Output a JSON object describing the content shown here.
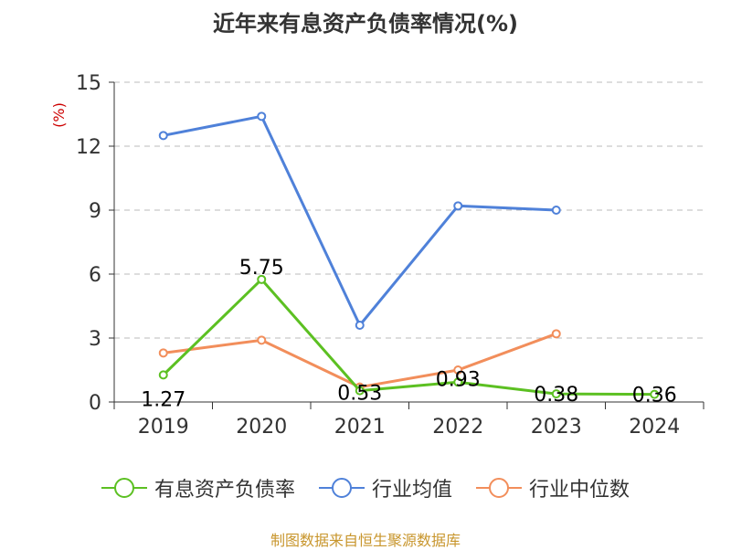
{
  "chart_data": {
    "type": "line",
    "title": "近年来有息资产负债率情况(%)",
    "ylabel": "(%)",
    "ylim": [
      0,
      15
    ],
    "yticks": [
      "0",
      "3",
      "6",
      "9",
      "12",
      "15"
    ],
    "categories": [
      "2019",
      "2020",
      "2021",
      "2022",
      "2023",
      "2024"
    ],
    "grid": true,
    "legend_position": "bottom",
    "series": [
      {
        "name": "有息资产负债率",
        "color": "#5cc022",
        "values": [
          1.27,
          5.75,
          0.53,
          0.93,
          0.38,
          0.36
        ],
        "labels": [
          "1.27",
          "5.75",
          "0.53",
          "0.93",
          "0.38",
          "0.36"
        ]
      },
      {
        "name": "行业均值",
        "color": "#4f81d9",
        "values": [
          12.5,
          13.4,
          3.6,
          9.2,
          9.0,
          null
        ]
      },
      {
        "name": "行业中位数",
        "color": "#f28e5b",
        "values": [
          2.3,
          2.9,
          0.7,
          1.5,
          3.2,
          null
        ]
      }
    ]
  },
  "footer": "制图数据来自恒生聚源数据库"
}
